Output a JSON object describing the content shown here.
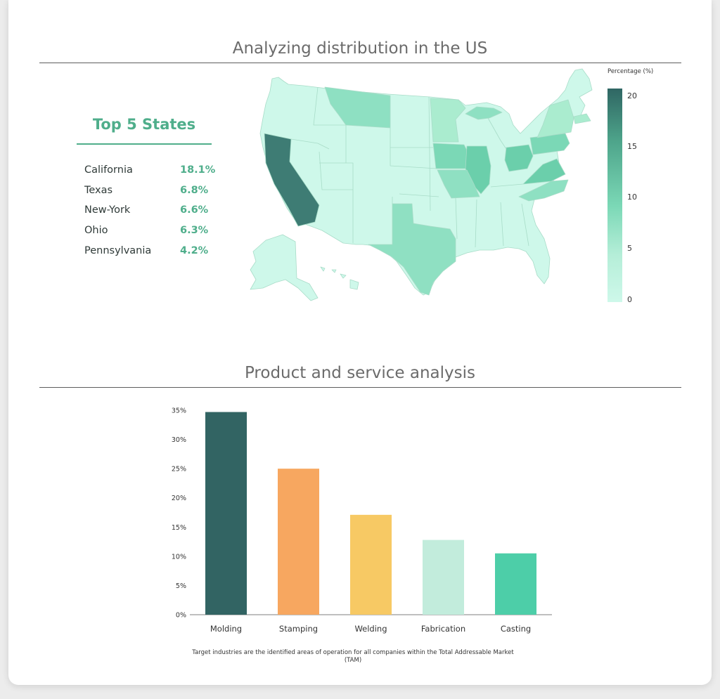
{
  "map_section": {
    "title": "Analyzing distribution in the US",
    "top5_title": "Top 5 States",
    "top_states": [
      {
        "name": "California",
        "value": "18.1%"
      },
      {
        "name": "Texas",
        "value": "6.8%"
      },
      {
        "name": "New-York",
        "value": "6.6%"
      },
      {
        "name": "Ohio",
        "value": "6.3%"
      },
      {
        "name": "Pennsylvania",
        "value": "4.2%"
      }
    ],
    "legend_title": "Percentage (%)",
    "legend_ticks": [
      "20",
      "15",
      "10",
      "5",
      "0"
    ],
    "legend_range": [
      0,
      20
    ],
    "legend_colors": [
      "#cef8ea",
      "#2f6663"
    ]
  },
  "bar_section": {
    "title": "Product and service analysis",
    "footnote": "Target industries are the identified areas of operation for all companies within the Total Addressable Market (TAM)"
  },
  "chart_data": {
    "type": "bar",
    "categories": [
      "Molding",
      "Stamping",
      "Welding",
      "Fabrication",
      "Casting"
    ],
    "values": [
      34.7,
      25.0,
      17.1,
      12.8,
      10.5
    ],
    "colors": [
      "#326463",
      "#f7a760",
      "#f7c964",
      "#c2ecdc",
      "#4dcea8"
    ],
    "yticks": [
      "0%",
      "5%",
      "10%",
      "15%",
      "20%",
      "25%",
      "30%",
      "35%"
    ],
    "ylim": [
      0,
      35
    ],
    "title": "",
    "xlabel": "",
    "ylabel": "",
    "grid": false,
    "legend": "none"
  }
}
